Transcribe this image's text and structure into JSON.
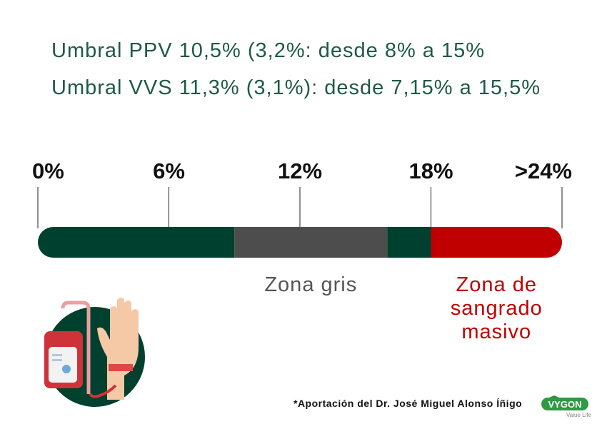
{
  "chart_data": {
    "type": "range-bar",
    "title_lines": [
      "Umbral PPV 10,5% (3,2%: desde 8% a 15%",
      "Umbral VVS 11,3% (3,1%): desde 7,15% a 15,5%"
    ],
    "xlim": [
      0,
      24
    ],
    "xticks": [
      {
        "value": 0,
        "label": "0%"
      },
      {
        "value": 6,
        "label": "6%"
      },
      {
        "value": 12,
        "label": "12%"
      },
      {
        "value": 18,
        "label": "18%"
      },
      {
        "value": 24,
        "label": ">24%"
      }
    ],
    "bands": [
      {
        "from": 0,
        "to": 9,
        "color": "#00402f"
      },
      {
        "from": 9,
        "to": 16,
        "color": "#4d4d4d",
        "label_lines": [
          "Zona gris"
        ],
        "label_color": "#555555"
      },
      {
        "from": 16,
        "to": 18,
        "color": "#00402f"
      },
      {
        "from": 18,
        "to": 24,
        "color": "#c00000",
        "label_lines": [
          "Zona de",
          "sangrado",
          "masivo"
        ],
        "label_color": "#c00000"
      }
    ],
    "footnote": "*Aportación del Dr. José Miguel Alonso Íñigo",
    "logo": "VYGON",
    "logo_tagline": "Value Life"
  }
}
